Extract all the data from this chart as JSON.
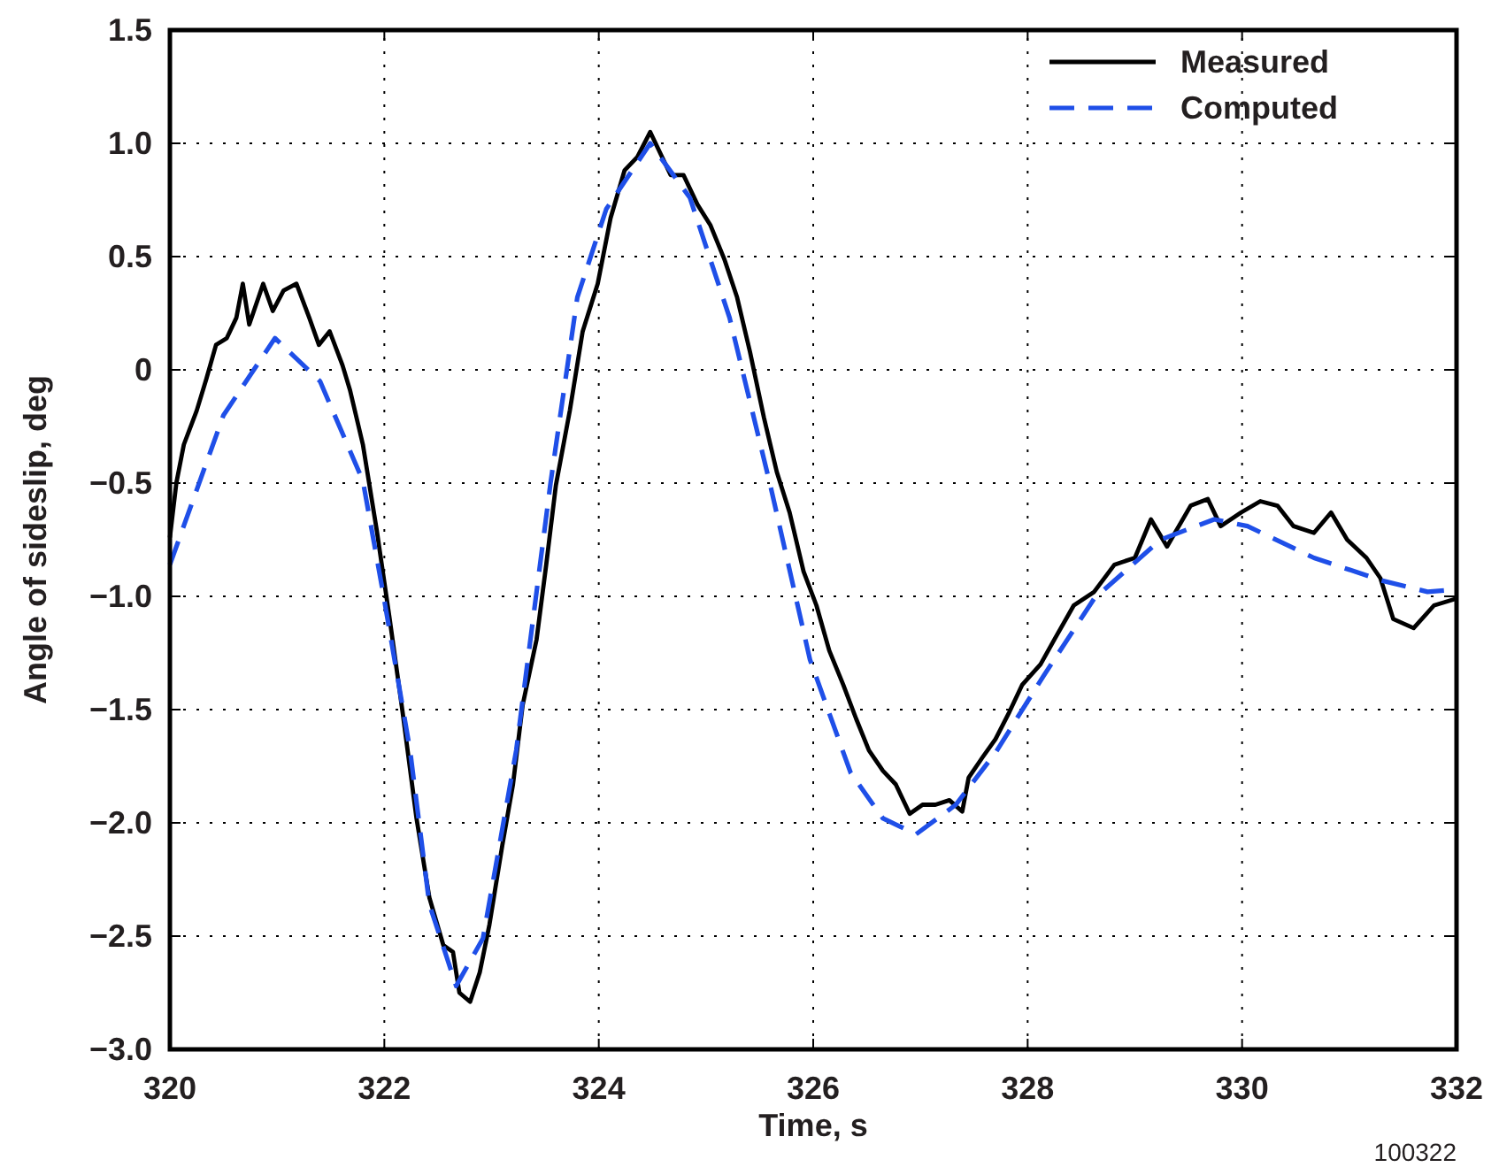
{
  "chart_data": {
    "type": "line",
    "xlabel": "Time, s",
    "ylabel": "Angle of sideslip, deg",
    "annotations": [
      "100322"
    ],
    "xlim": [
      320,
      332
    ],
    "xticks": [
      320,
      322,
      324,
      326,
      328,
      330,
      332
    ],
    "ylim": [
      -3,
      1.5
    ],
    "yticks": [
      {
        "value": -3,
        "label": "−3.0"
      },
      {
        "value": -2.5,
        "label": "−2.5"
      },
      {
        "value": -2,
        "label": "−2.0"
      },
      {
        "value": -1.5,
        "label": "−1.5"
      },
      {
        "value": -1,
        "label": "−1.0"
      },
      {
        "value": -0.5,
        "label": "−0.5"
      },
      {
        "value": 0,
        "label": "0"
      },
      {
        "value": 0.5,
        "label": "0.5"
      },
      {
        "value": 1,
        "label": "1.0"
      },
      {
        "value": 1.5,
        "label": "1.5"
      }
    ],
    "grid": true,
    "legend": "top right",
    "series": [
      {
        "name": "Measured",
        "color": "#000000",
        "line_style": "solid",
        "x": [
          320,
          320.06,
          320.13,
          320.25,
          320.34,
          320.43,
          320.53,
          320.62,
          320.68,
          320.74,
          320.87,
          320.96,
          321.06,
          321.18,
          321.3,
          321.39,
          321.49,
          321.61,
          321.68,
          321.8,
          321.93,
          322.05,
          322.17,
          322.3,
          322.42,
          322.55,
          322.64,
          322.7,
          322.8,
          322.89,
          322.98,
          323.1,
          323.2,
          323.29,
          323.42,
          323.51,
          323.6,
          323.73,
          323.85,
          323.99,
          324.11,
          324.24,
          324.36,
          324.48,
          324.57,
          324.67,
          324.79,
          324.92,
          325.04,
          325.17,
          325.29,
          325.41,
          325.54,
          325.66,
          325.78,
          325.91,
          326.03,
          326.15,
          326.28,
          326.4,
          326.52,
          326.65,
          326.77,
          326.9,
          327.02,
          327.14,
          327.27,
          327.39,
          327.45,
          327.58,
          327.7,
          327.83,
          327.95,
          328.12,
          328.25,
          328.43,
          328.62,
          328.81,
          329,
          329.15,
          329.3,
          329.52,
          329.68,
          329.8,
          329.99,
          330.17,
          330.33,
          330.48,
          330.67,
          330.83,
          330.98,
          331.16,
          331.29,
          331.41,
          331.6,
          331.79,
          332
        ],
        "values": [
          -0.74,
          -0.5,
          -0.33,
          -0.18,
          -0.04,
          0.11,
          0.14,
          0.23,
          0.38,
          0.2,
          0.38,
          0.26,
          0.35,
          0.38,
          0.23,
          0.11,
          0.17,
          0.02,
          -0.09,
          -0.33,
          -0.71,
          -1.1,
          -1.51,
          -1.98,
          -2.33,
          -2.54,
          -2.57,
          -2.75,
          -2.79,
          -2.66,
          -2.45,
          -2.1,
          -1.83,
          -1.48,
          -1.19,
          -0.86,
          -0.51,
          -0.18,
          0.17,
          0.38,
          0.67,
          0.88,
          0.94,
          1.05,
          0.96,
          0.86,
          0.86,
          0.73,
          0.64,
          0.49,
          0.32,
          0.08,
          -0.21,
          -0.45,
          -0.63,
          -0.89,
          -1.04,
          -1.24,
          -1.39,
          -1.54,
          -1.68,
          -1.77,
          -1.83,
          -1.96,
          -1.92,
          -1.92,
          -1.9,
          -1.95,
          -1.8,
          -1.71,
          -1.63,
          -1.51,
          -1.39,
          -1.3,
          -1.19,
          -1.04,
          -0.98,
          -0.86,
          -0.83,
          -0.66,
          -0.78,
          -0.6,
          -0.57,
          -0.69,
          -0.63,
          -0.58,
          -0.6,
          -0.69,
          -0.72,
          -0.63,
          -0.75,
          -0.83,
          -0.92,
          -1.1,
          -1.14,
          -1.04,
          -1.01
        ]
      },
      {
        "name": "Computed",
        "color": "#1f4fe8",
        "line_style": "dashed",
        "x": [
          320,
          320.5,
          320.98,
          321.4,
          321.8,
          321.99,
          322.24,
          322.42,
          322.67,
          322.92,
          323.23,
          323.55,
          323.8,
          324.07,
          324.48,
          324.85,
          325.22,
          325.6,
          325.97,
          326.35,
          326.65,
          326.96,
          327.33,
          327.7,
          328.15,
          328.62,
          329.24,
          329.74,
          330.05,
          330.67,
          331.3,
          331.73,
          332
        ],
        "values": [
          -0.86,
          -0.2,
          0.14,
          -0.05,
          -0.49,
          -0.99,
          -1.68,
          -2.36,
          -2.72,
          -2.51,
          -1.68,
          -0.5,
          0.32,
          0.71,
          1.0,
          0.76,
          0.23,
          -0.51,
          -1.28,
          -1.78,
          -1.98,
          -2.05,
          -1.92,
          -1.69,
          -1.35,
          -1.01,
          -0.75,
          -0.66,
          -0.69,
          -0.83,
          -0.93,
          -0.98,
          -0.97
        ]
      }
    ]
  }
}
